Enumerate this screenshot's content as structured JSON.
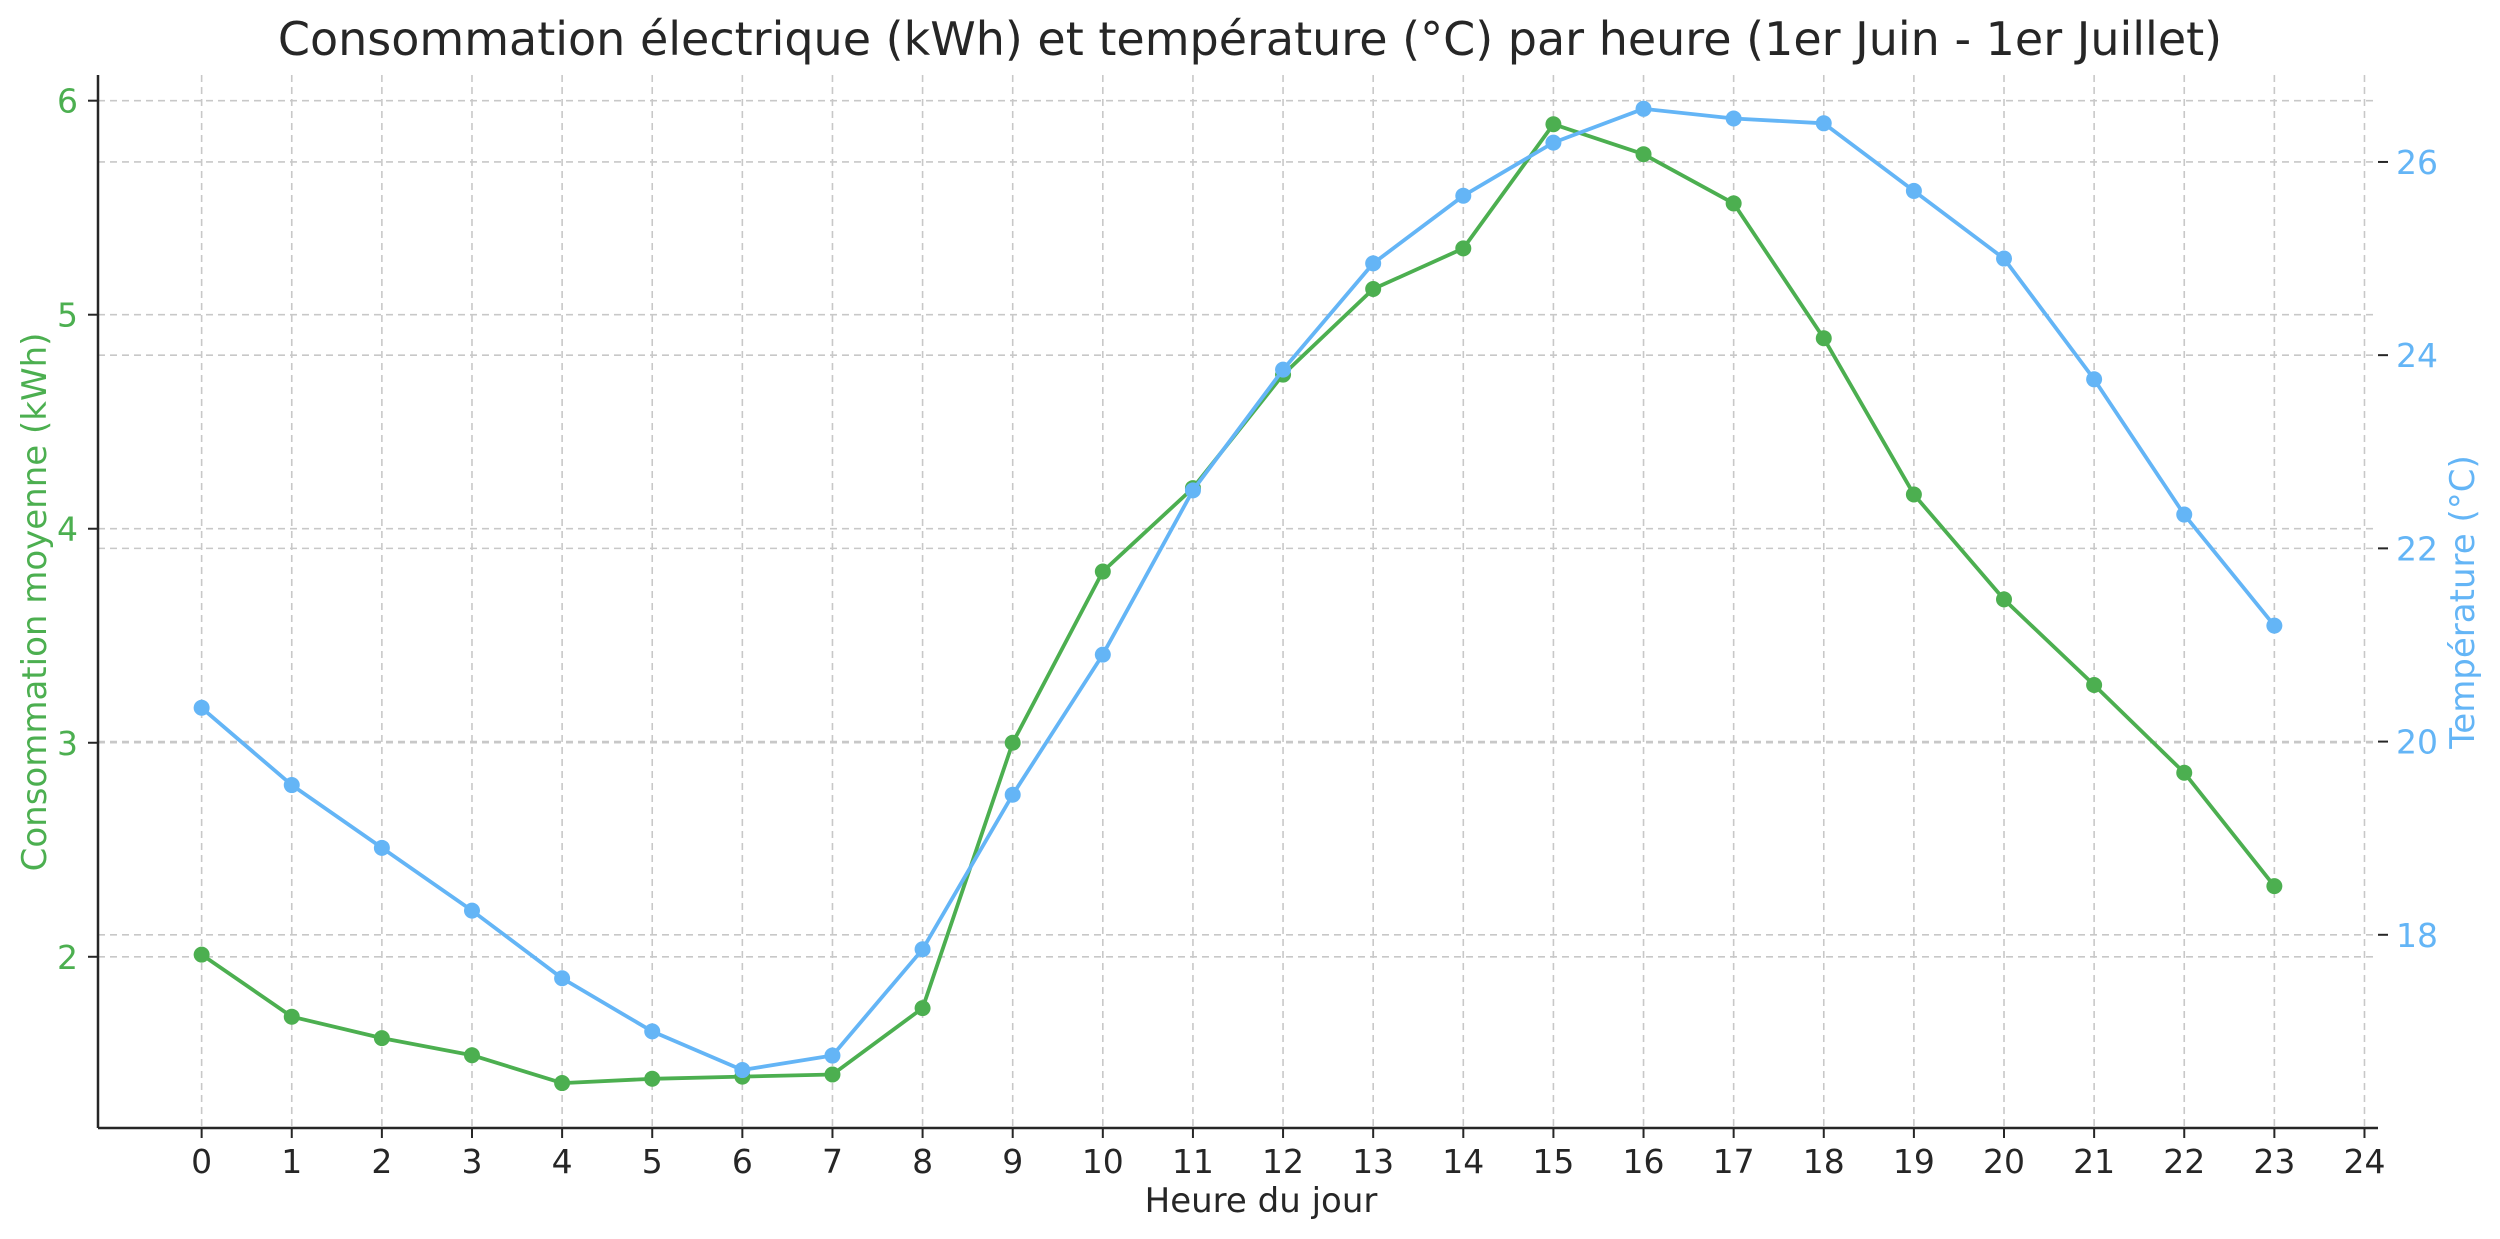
{
  "chart_data": {
    "type": "line",
    "title": "Consommation électrique (kWh) et température (°C) par heure (1er Juin - 1er Juillet)",
    "xlabel": "Heure du jour",
    "ylabel_left": "Consommation moyenne (kWh)",
    "ylabel_right": "Température (°C)",
    "x": [
      0,
      1,
      2,
      3,
      4,
      5,
      6,
      7,
      8,
      9,
      10,
      11,
      12,
      13,
      14,
      15,
      16,
      17,
      18,
      19,
      20,
      21,
      22,
      23
    ],
    "x_ticks": [
      0,
      1,
      2,
      3,
      4,
      5,
      6,
      7,
      8,
      9,
      10,
      11,
      12,
      13,
      14,
      15,
      16,
      17,
      18,
      19,
      20,
      21,
      22,
      23,
      24
    ],
    "xlim": [
      -1.15,
      24.15
    ],
    "ylim_left": [
      1.2,
      6.12
    ],
    "yticks_left": [
      2,
      3,
      4,
      5,
      6
    ],
    "ylim_right": [
      16.0,
      26.9
    ],
    "yticks_right": [
      18,
      20,
      22,
      24,
      26
    ],
    "grid": true,
    "series": [
      {
        "axis": "left",
        "color": "#4caf50",
        "values": [
          2.01,
          1.72,
          1.62,
          1.54,
          1.41,
          1.43,
          1.44,
          1.45,
          1.76,
          3.0,
          3.8,
          4.19,
          4.72,
          5.12,
          5.31,
          5.89,
          5.75,
          5.52,
          4.89,
          4.16,
          3.67,
          3.27,
          2.86,
          2.33
        ]
      },
      {
        "axis": "right",
        "color": "#64b5f6",
        "values": [
          20.35,
          19.55,
          18.9,
          18.25,
          17.55,
          17.0,
          16.6,
          16.75,
          17.85,
          19.45,
          20.9,
          22.6,
          23.85,
          24.95,
          25.65,
          26.2,
          26.55,
          26.45,
          26.4,
          25.7,
          25.0,
          23.75,
          22.35,
          21.2
        ]
      }
    ]
  }
}
